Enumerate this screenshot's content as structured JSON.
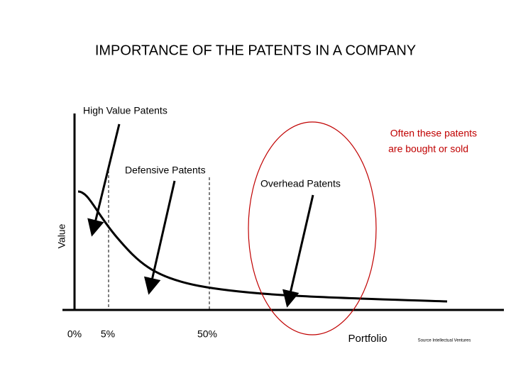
{
  "title": "IMPORTANCE OF THE PATENTS IN A COMPANY",
  "labels": {
    "high_value": "High Value Patents",
    "defensive": "Defensive Patents",
    "overhead": "Overhead Patents",
    "note": [
      "Often these patents",
      "are bought or sold"
    ]
  },
  "axes": {
    "y_label": "Value",
    "x_label": "Portfolio",
    "x_ticks": [
      "0%",
      "5%",
      "50%"
    ]
  },
  "source": "Source Intellectual Ventures"
}
